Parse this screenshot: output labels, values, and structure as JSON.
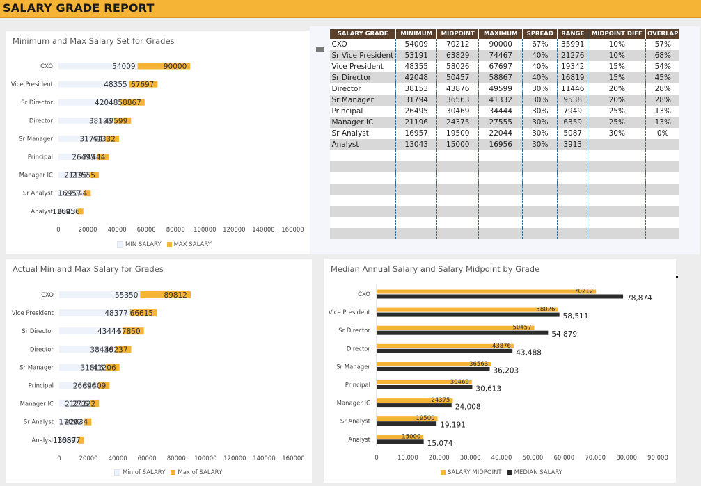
{
  "header": {
    "title": "SALARY GRADE REPORT"
  },
  "colors": {
    "accent": "#f5b436",
    "light": "#eef2fa",
    "dark": "#2b2b2b",
    "table_header": "#5a3f2b"
  },
  "chart1": {
    "title": "Minimum and Max Salary Set for Grades",
    "legend": [
      "MIN SALARY",
      "MAX SALARY"
    ]
  },
  "chart2": {
    "title": "Actual Min and Max Salary for Grades",
    "legend": [
      "Min of SALARY",
      "Max of SALARY"
    ]
  },
  "chart3": {
    "title": "Median Annual Salary and Salary Midpoint by Grade",
    "legend": [
      "SALARY MIDPOINT",
      "MEDIAN SALARY"
    ]
  },
  "table": {
    "headers": [
      "SALARY GRADE",
      "MINIMUM",
      "MIDPOINT",
      "MAXIMUM",
      "SPREAD",
      "RANGE",
      "MIDPOINT DIFF",
      "OVERLAP"
    ],
    "rows": [
      [
        "CXO",
        "54009",
        "70212",
        "90000",
        "67%",
        "35991",
        "10%",
        "57%"
      ],
      [
        "Sr Vice President",
        "53191",
        "63829",
        "74467",
        "40%",
        "21276",
        "10%",
        "68%"
      ],
      [
        "Vice President",
        "48355",
        "58026",
        "67697",
        "40%",
        "19342",
        "15%",
        "54%"
      ],
      [
        "Sr Director",
        "42048",
        "50457",
        "58867",
        "40%",
        "16819",
        "15%",
        "45%"
      ],
      [
        "Director",
        "38153",
        "43876",
        "49599",
        "30%",
        "11446",
        "20%",
        "28%"
      ],
      [
        "Sr Manager",
        "31794",
        "36563",
        "41332",
        "30%",
        "9538",
        "20%",
        "28%"
      ],
      [
        "Principal",
        "26495",
        "30469",
        "34444",
        "30%",
        "7949",
        "25%",
        "13%"
      ],
      [
        "Manager IC",
        "21196",
        "24375",
        "27555",
        "30%",
        "6359",
        "25%",
        "13%"
      ],
      [
        "Sr Analyst",
        "16957",
        "19500",
        "22044",
        "30%",
        "5087",
        "30%",
        "0%"
      ],
      [
        "Analyst",
        "13043",
        "15000",
        "16956",
        "30%",
        "3913",
        "",
        ""
      ]
    ]
  },
  "chart_data": [
    {
      "type": "bar",
      "subtype": "horizontal-stacked-range",
      "title": "Minimum and Max Salary Set for Grades",
      "categories": [
        "CXO",
        "Vice President",
        "Sr Director",
        "Director",
        "Sr Manager",
        "Principal",
        "Manager IC",
        "Sr Analyst",
        "Analyst"
      ],
      "series": [
        {
          "name": "MIN SALARY",
          "values": [
            54009,
            48355,
            42048,
            38153,
            31794,
            26495,
            21196,
            16957,
            13043
          ]
        },
        {
          "name": "MAX SALARY",
          "values": [
            90000,
            67697,
            58867,
            49599,
            41332,
            34444,
            27555,
            22044,
            16956
          ]
        }
      ],
      "xlim": [
        0,
        160000
      ],
      "xticks": [
        "0",
        "20000",
        "40000",
        "60000",
        "80000",
        "100000",
        "120000",
        "140000",
        "160000"
      ],
      "legend_position": "bottom"
    },
    {
      "type": "bar",
      "subtype": "horizontal-stacked-range",
      "title": "Actual Min and Max Salary for Grades",
      "categories": [
        "CXO",
        "Vice President",
        "Sr Director",
        "Director",
        "Sr Manager",
        "Principal",
        "Manager IC",
        "Sr Analyst",
        "Analyst"
      ],
      "series": [
        {
          "name": "Min of SALARY",
          "values": [
            55350,
            48377,
            43444,
            38436,
            31816,
            26696,
            21216,
            17092,
            13057
          ]
        },
        {
          "name": "Max of SALARY",
          "values": [
            89812,
            66615,
            57850,
            49237,
            41206,
            34409,
            27222,
            22034,
            16897
          ]
        }
      ],
      "xlim": [
        0,
        160000
      ],
      "xticks": [
        "0",
        "20000",
        "40000",
        "60000",
        "80000",
        "100000",
        "120000",
        "140000",
        "160000"
      ],
      "legend_position": "bottom"
    },
    {
      "type": "bar",
      "subtype": "horizontal-clustered",
      "title": "Median Annual Salary and Salary Midpoint by Grade",
      "categories": [
        "CXO",
        "Vice President",
        "Sr Director",
        "Director",
        "Sr Manager",
        "Principal",
        "Manager IC",
        "Sr Analyst",
        "Analyst"
      ],
      "series": [
        {
          "name": "SALARY MIDPOINT",
          "values": [
            70212,
            58026,
            50457,
            43876,
            36563,
            30469,
            24375,
            19500,
            15000
          ],
          "labels": [
            "70212",
            "58026",
            "50457",
            "43876",
            "36563",
            "30469",
            "24375",
            "19500",
            "15000"
          ]
        },
        {
          "name": "MEDIAN SALARY",
          "values": [
            78874,
            58511,
            54879,
            43488,
            36203,
            30613,
            24008,
            19191,
            15074
          ],
          "labels": [
            "78,874",
            "58,511",
            "54,879",
            "43,488",
            "36,203",
            "30,613",
            "24,008",
            "19,191",
            "15,074"
          ]
        }
      ],
      "xlim": [
        0,
        90000
      ],
      "xticks": [
        "0",
        "10,000",
        "20,000",
        "30,000",
        "40,000",
        "50,000",
        "60,000",
        "70,000",
        "80,000",
        "90,000"
      ],
      "legend_position": "bottom"
    }
  ]
}
